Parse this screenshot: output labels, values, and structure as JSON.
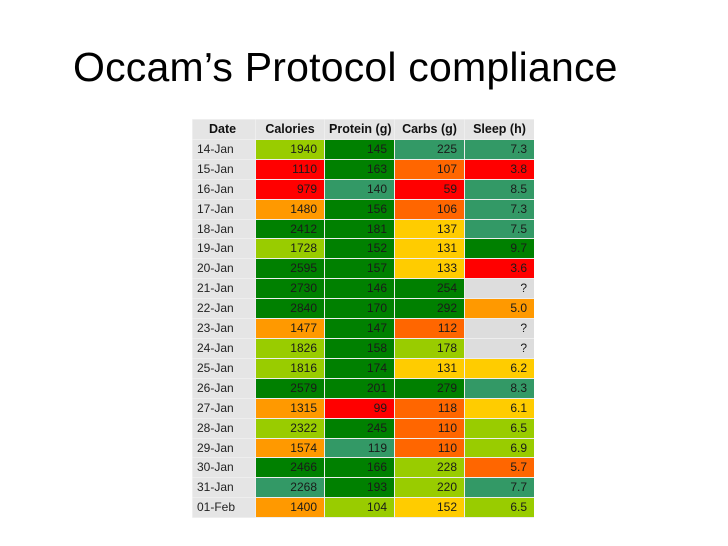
{
  "slide": {
    "title": "Occam’s Protocol compliance"
  },
  "table": {
    "headers": [
      "Date",
      "Calories",
      "Protein (g)",
      "Carbs (g)",
      "Sleep (h)"
    ],
    "rows": [
      [
        "14-Jan",
        "1940",
        "145",
        "225",
        "7.3"
      ],
      [
        "15-Jan",
        "1110",
        "163",
        "107",
        "3.8"
      ],
      [
        "16-Jan",
        "979",
        "140",
        "59",
        "8.5"
      ],
      [
        "17-Jan",
        "1480",
        "156",
        "106",
        "7.3"
      ],
      [
        "18-Jan",
        "2412",
        "181",
        "137",
        "7.5"
      ],
      [
        "19-Jan",
        "1728",
        "152",
        "131",
        "9.7"
      ],
      [
        "20-Jan",
        "2595",
        "157",
        "133",
        "3.6"
      ],
      [
        "21-Jan",
        "2730",
        "146",
        "254",
        "?"
      ],
      [
        "22-Jan",
        "2840",
        "170",
        "292",
        "5.0"
      ],
      [
        "23-Jan",
        "1477",
        "147",
        "112",
        "?"
      ],
      [
        "24-Jan",
        "1826",
        "158",
        "178",
        "?"
      ],
      [
        "25-Jan",
        "1816",
        "174",
        "131",
        "6.2"
      ],
      [
        "26-Jan",
        "2579",
        "201",
        "279",
        "8.3"
      ],
      [
        "27-Jan",
        "1315",
        "99",
        "118",
        "6.1"
      ],
      [
        "28-Jan",
        "2322",
        "245",
        "110",
        "6.5"
      ],
      [
        "29-Jan",
        "1574",
        "119",
        "110",
        "6.9"
      ],
      [
        "30-Jan",
        "2466",
        "166",
        "228",
        "5.7"
      ],
      [
        "31-Jan",
        "2268",
        "193",
        "220",
        "7.7"
      ],
      [
        "01-Feb",
        "1400",
        "104",
        "152",
        "6.5"
      ]
    ],
    "cell_colors": [
      [
        null,
        "#99cc00",
        "#008000",
        "#339966",
        "#339966"
      ],
      [
        null,
        "#ff0000",
        "#008000",
        "#ff6600",
        "#ff0000"
      ],
      [
        null,
        "#ff0000",
        "#339966",
        "#ff0000",
        "#339966"
      ],
      [
        null,
        "#ff9900",
        "#008000",
        "#ff6600",
        "#339966"
      ],
      [
        null,
        "#008000",
        "#008000",
        "#ffcc00",
        "#339966"
      ],
      [
        null,
        "#99cc00",
        "#008000",
        "#ffcc00",
        "#008000"
      ],
      [
        null,
        "#008000",
        "#008000",
        "#ffcc00",
        "#ff0000"
      ],
      [
        null,
        "#008000",
        "#008000",
        "#008000",
        "#dddddd"
      ],
      [
        null,
        "#008000",
        "#008000",
        "#008000",
        "#ff9900"
      ],
      [
        null,
        "#ff9900",
        "#008000",
        "#ff6600",
        "#dddddd"
      ],
      [
        null,
        "#99cc00",
        "#008000",
        "#99cc00",
        "#dddddd"
      ],
      [
        null,
        "#99cc00",
        "#008000",
        "#ffcc00",
        "#ffcc00"
      ],
      [
        null,
        "#008000",
        "#008000",
        "#008000",
        "#339966"
      ],
      [
        null,
        "#ff9900",
        "#ff0000",
        "#ff6600",
        "#ffcc00"
      ],
      [
        null,
        "#99cc00",
        "#008000",
        "#ff6600",
        "#99cc00"
      ],
      [
        null,
        "#ff9900",
        "#339966",
        "#ff6600",
        "#99cc00"
      ],
      [
        null,
        "#008000",
        "#008000",
        "#99cc00",
        "#ff6600"
      ],
      [
        null,
        "#339966",
        "#008000",
        "#99cc00",
        "#339966"
      ],
      [
        null,
        "#ff9900",
        "#99cc00",
        "#ffcc00",
        "#99cc00"
      ]
    ]
  }
}
